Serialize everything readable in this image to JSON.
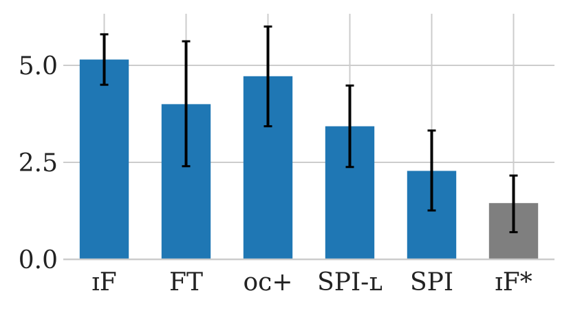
{
  "chart_data": {
    "type": "bar",
    "categories": [
      "ɪF",
      "FT",
      "ᴏᴄ+",
      "SPI-ʟ",
      "SPI",
      "ɪF*"
    ],
    "values": [
      5.15,
      4.0,
      4.72,
      3.43,
      2.28,
      1.45
    ],
    "error_low": [
      4.5,
      2.4,
      3.43,
      2.38,
      1.26,
      0.7
    ],
    "error_high": [
      5.8,
      5.62,
      6.0,
      4.48,
      3.32,
      2.16
    ],
    "bar_colors": [
      "#1f77b4",
      "#1f77b4",
      "#1f77b4",
      "#1f77b4",
      "#1f77b4",
      "#7f7f7f"
    ],
    "error_bar_color": "#000000",
    "grid_color": "#cccccc",
    "axis_color": "#cccccc",
    "ylim": [
      0,
      6.3
    ],
    "yticks": [
      0.0,
      2.5,
      5.0
    ],
    "ytick_labels": [
      "0.0",
      "2.5",
      "5.0"
    ],
    "grid": true,
    "title": "",
    "xlabel": "",
    "ylabel": ""
  }
}
